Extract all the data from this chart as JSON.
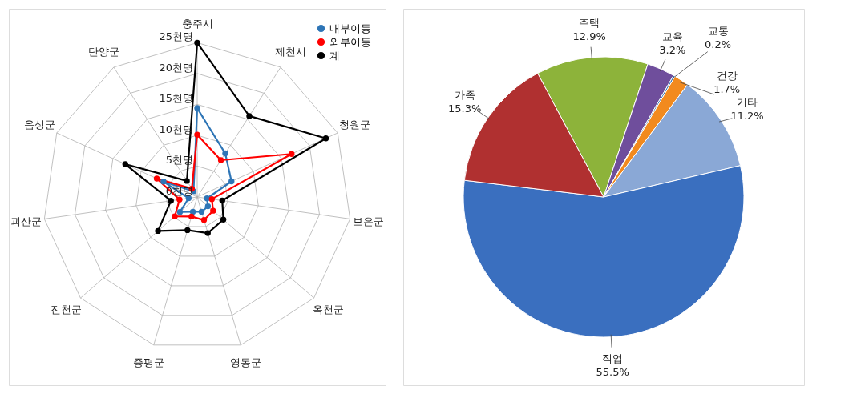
{
  "chart_data": [
    {
      "type": "radar",
      "categories": [
        "충주시",
        "제천시",
        "청원군",
        "보은군",
        "옥천군",
        "영동군",
        "증평군",
        "진천군",
        "괴산군",
        "음성군",
        "단양군"
      ],
      "series": [
        {
          "name": "내부이동",
          "color": "#2e75b6",
          "values": [
            14.4,
            8.4,
            6.1,
            1.6,
            2.3,
            2.5,
            2.5,
            3.7,
            1.4,
            6.0,
            1.1
          ]
        },
        {
          "name": "외부이동",
          "color": "#ff0000",
          "values": [
            10.1,
            7.1,
            16.8,
            2.4,
            3.4,
            3.9,
            3.3,
            4.8,
            2.9,
            7.2,
            1.6
          ]
        },
        {
          "name": "계",
          "color": "#000000",
          "values": [
            25.0,
            15.6,
            22.9,
            4.1,
            5.6,
            6.1,
            5.6,
            8.4,
            4.3,
            12.8,
            3.1
          ]
        }
      ],
      "ylim": [
        0,
        25
      ],
      "yticks": [
        {
          "value": 0,
          "label": "0천명"
        },
        {
          "value": 5,
          "label": "5천명"
        },
        {
          "value": 10,
          "label": "10천명"
        },
        {
          "value": 15,
          "label": "15천명"
        },
        {
          "value": 20,
          "label": "20천명"
        },
        {
          "value": 25,
          "label": "25천명"
        }
      ],
      "grid": true,
      "legend": "top right",
      "marker": "circle"
    },
    {
      "type": "pie",
      "categories": [
        "주택",
        "교육",
        "교통",
        "건강",
        "기타",
        "직업",
        "가족"
      ],
      "values": [
        12.9,
        3.2,
        0.2,
        1.7,
        11.2,
        55.5,
        15.3
      ],
      "colors": [
        "#8db33a",
        "#6f4e9c",
        "#3b78b8",
        "#f28a1e",
        "#8aa8d6",
        "#3a6fbf",
        "#b03030"
      ],
      "value_labels": [
        "12.9%",
        "3.2%",
        "0.2%",
        "1.7%",
        "11.2%",
        "55.5%",
        "15.3%"
      ]
    }
  ]
}
